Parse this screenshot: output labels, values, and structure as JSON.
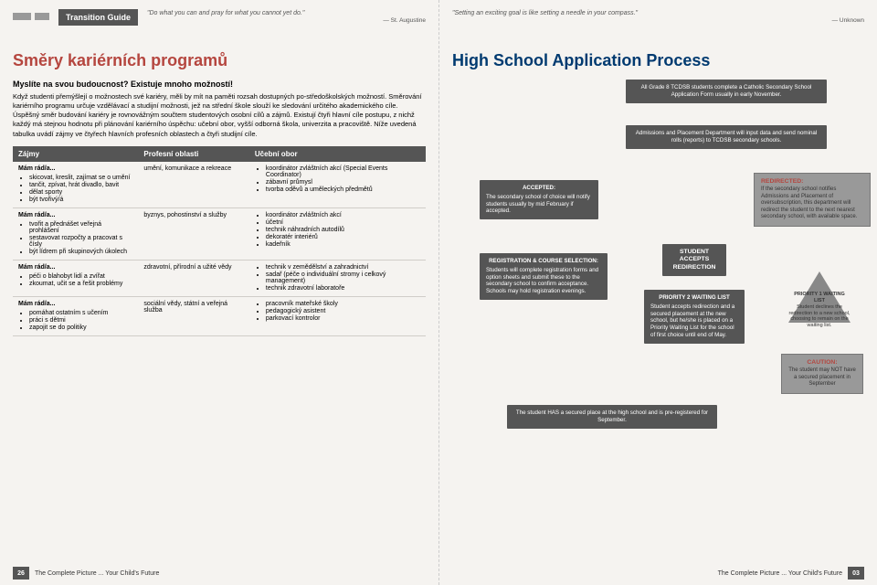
{
  "header": {
    "bar": "Transition Guide",
    "quoteL": "\"Do what you can and pray for what you cannot yet do.\"",
    "attrL": "— St. Augustine",
    "quoteR": "\"Setting an exciting goal is like setting a needle in your compass.\"",
    "attrR": "— Unknown"
  },
  "left": {
    "title": "Směry kariérních programů",
    "subhead": "Myslíte na svou budoucnost? Existuje mnoho možností!",
    "body": "Když studenti přemýšlejí o možnostech své kariéry, měli by mít na paměti rozsah dostupných po-středoškolských možností. Směrování kariérního programu určuje vzdělávací a studijní možnosti, jež na střední škole slouží ke sledování určitého akademického cíle. Úspěšný směr budování kariéry je rovnovážným součtem studentových osobní cílů a zájmů. Existují čtyři hlavní cíle postupu, z nichž každý má stejnou hodnotu při plánování kariérního úspěchu: učební obor, vyšší odborná škola, univerzita a pracoviště. Níže uvedená tabulka uvádí zájmy ve čtyřech hlavních profesních oblastech a čtyři studijní cíle.",
    "cols": [
      "Zájmy",
      "Profesní oblasti",
      "Učební obor"
    ],
    "rows": [
      {
        "head": "Mám rád/a...",
        "interests": [
          "skicovat, kreslit, zajímat se o umění",
          "tančit, zpívat, hrát divadlo, bavit",
          "dělat sporty",
          "být tvořivý/á"
        ],
        "field": "umění, komunikace a rekreace",
        "appr": [
          "koordinátor zvláštních akcí (Special Events Coordinator)",
          "zábavní průmysl",
          "tvorba oděvů a uměleckých předmětů"
        ]
      },
      {
        "head": "Mám rád/a...",
        "interests": [
          "tvořit a přednášet veřejná prohlášení",
          "sestavovat rozpočty a pracovat s čísly",
          "být lídrem při skupinových úkolech"
        ],
        "field": "byznys, pohostinství a služby",
        "appr": [
          "koordinátor zvláštních akcí",
          "účetní",
          "technik náhradních autodílů",
          "dekoratér interiérů",
          "kadeřník"
        ]
      },
      {
        "head": "Mám rád/a...",
        "interests": [
          "péči o blahobyt lidí a zvířat",
          "zkoumat, učit se a řešit problémy"
        ],
        "field": "zdravotní, přírodní a užité vědy",
        "appr": [
          "technik v zemědělství a zahradnictví",
          "sadař (péče o individuální stromy i celkový management)",
          "technik zdravotní laboratoře"
        ]
      },
      {
        "head": "Mám rád/a...",
        "interests": [
          "pomáhat ostatním s učením",
          "práci s dětmi",
          "zapojit se do politiky"
        ],
        "field": "sociální vědy, státní a veřejná služba",
        "appr": [
          "pracovník mateřské školy",
          "pedagogický asistent",
          "parkovací kontrolor"
        ]
      }
    ]
  },
  "right": {
    "title": "High School Application Process",
    "b1": "All Grade 8 TCDSB students complete a Catholic Secondary School Application Form usually in early November.",
    "b2": "Admissions and Placement Department will input data and send nominal rolls (reports) to TCDSB secondary schools.",
    "acc_t": "ACCEPTED:",
    "acc": "The secondary school of choice will notify students usually by mid February if accepted.",
    "red_t": "REDIRECTED:",
    "red": "If the secondary school notifies Admissions and Placement of oversubscription, this department will redirect the student to the next nearest secondary school, with available space.",
    "reg_t": "REGISTRATION & COURSE SELECTION:",
    "reg": "Students will complete registration forms and option sheets and submit these to the secondary school to confirm acceptance. Schools may hold registration evenings.",
    "sar": "STUDENT ACCEPTS REDIRECTION",
    "p2_t": "PRIORITY 2 WAITING LIST",
    "p2": "Student accepts redirection and a secured placement at the new school, but he/she is placed on a Priority Waiting List for the school of first choice until end of May.",
    "p1_t": "PRIORITY 1 WAITING LIST",
    "p1": "Student declines the redirection to a new school, choosing to remain on the waiting list.",
    "ca_t": "CAUTION:",
    "ca": "The student may NOT have a secured placement in September",
    "fin": "The student HAS a secured place at the high school and is pre-registered for September."
  },
  "footer": {
    "l_page": "26",
    "r_page": "03",
    "text": "The Complete Picture ... Your Child's Future"
  }
}
